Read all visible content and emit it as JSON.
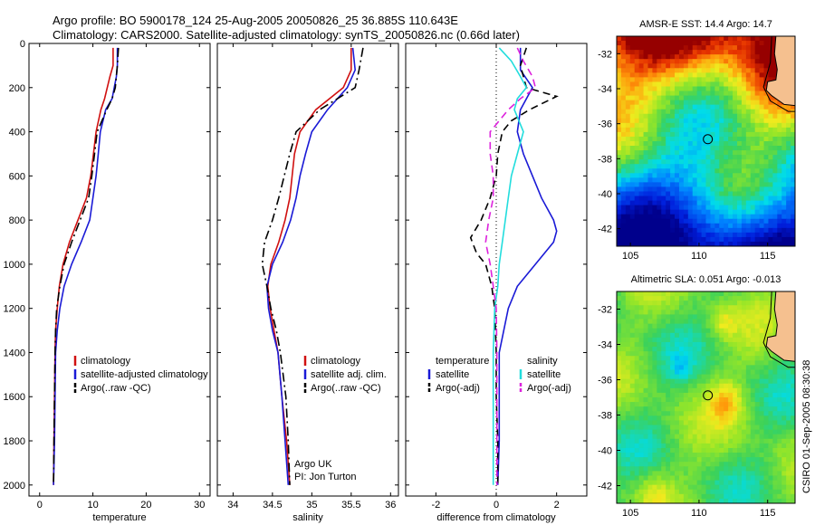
{
  "header": {
    "line1": "Argo profile: BO 5900178_124 25-Aug-2005 20050826_25 36.885S 110.643E",
    "line2": "Climatology: CARS2000. Satellite-adjusted climatology: synTS_20050826.nc (0.66d later)"
  },
  "footer": {
    "credit": "CSIRO 01-Sep-2005 08:30:38"
  },
  "colors": {
    "climatology": "#d01010",
    "satellite": "#1a1ad6",
    "argo": "#000000",
    "satellite_salinity_diff": "#22dddd",
    "argo_salinity_diff": "#dd22dd",
    "land": "#f5c08f"
  },
  "chart_data": [
    {
      "type": "line",
      "panel": "temperature",
      "xlabel": "temperature",
      "ylabel": "",
      "xlim": [
        -2,
        32
      ],
      "ylim": [
        2050,
        0
      ],
      "xticks": [
        0,
        10,
        20,
        30
      ],
      "yticks": [
        0,
        200,
        400,
        600,
        800,
        1000,
        1200,
        1400,
        1600,
        1800,
        2000
      ],
      "legend": {
        "position": "bottom-right",
        "entries": [
          "climatology",
          "satellite-adjusted climatology",
          "Argo(..raw -QC)"
        ]
      },
      "series": [
        {
          "name": "climatology",
          "style": "solid",
          "color": "#d01010",
          "depth": [
            20,
            100,
            150,
            250,
            300,
            400,
            500,
            600,
            700,
            800,
            900,
            1000,
            1100,
            1200,
            1300,
            1400,
            1600,
            1800,
            2000
          ],
          "values": [
            13.8,
            13.8,
            13.2,
            12.2,
            11.5,
            10.6,
            10.1,
            9.6,
            8.8,
            7.2,
            5.6,
            4.4,
            3.7,
            3.3,
            3.0,
            2.9,
            2.8,
            2.7,
            2.6
          ]
        },
        {
          "name": "satellite-adjusted climatology",
          "style": "solid",
          "color": "#1a1ad6",
          "depth": [
            20,
            100,
            150,
            250,
            300,
            400,
            500,
            600,
            700,
            800,
            900,
            1000,
            1100,
            1200,
            1300,
            1400,
            1600,
            1800,
            2000
          ],
          "values": [
            14.6,
            14.6,
            14.4,
            13.6,
            12.4,
            11.4,
            11.0,
            10.6,
            10.0,
            9.4,
            7.8,
            6.0,
            4.6,
            3.8,
            3.3,
            3.0,
            2.9,
            2.8,
            2.6
          ]
        },
        {
          "name": "Argo(..raw -QC)",
          "style": "dashdot",
          "color": "#000000",
          "depth": [
            20,
            100,
            200,
            250,
            300,
            400,
            500,
            600,
            700,
            800,
            900,
            1000,
            1100,
            1200,
            1300,
            1400,
            1600,
            1800,
            2000
          ],
          "values": [
            14.8,
            14.6,
            14.2,
            13.6,
            12.6,
            10.8,
            10.3,
            9.8,
            9.2,
            7.6,
            6.0,
            4.6,
            3.8,
            3.2,
            3.0,
            2.9,
            2.8,
            2.7,
            2.6
          ]
        }
      ]
    },
    {
      "type": "line",
      "panel": "salinity",
      "xlabel": "salinity",
      "ylabel": "",
      "xlim": [
        33.8,
        36.1
      ],
      "ylim": [
        2050,
        0
      ],
      "xticks": [
        34,
        34.5,
        35,
        35.5,
        36
      ],
      "legend": {
        "position": "bottom-right",
        "entries": [
          "climatology",
          "satellite adj. clim.",
          "Argo(..raw -QC)"
        ]
      },
      "annotation": [
        "Argo UK",
        "PI: Jon Turton"
      ],
      "series": [
        {
          "name": "climatology",
          "style": "solid",
          "color": "#d01010",
          "depth": [
            20,
            120,
            200,
            300,
            400,
            500,
            600,
            700,
            800,
            900,
            1000,
            1100,
            1200,
            1300,
            1400,
            1600,
            1800,
            2000
          ],
          "values": [
            35.5,
            35.5,
            35.4,
            35.05,
            34.85,
            34.78,
            34.75,
            34.72,
            34.66,
            34.58,
            34.48,
            34.44,
            34.47,
            34.52,
            34.57,
            34.62,
            34.68,
            34.72
          ]
        },
        {
          "name": "satellite adj. clim.",
          "style": "solid",
          "color": "#1a1ad6",
          "depth": [
            20,
            120,
            200,
            300,
            400,
            500,
            600,
            700,
            800,
            900,
            1000,
            1100,
            1200,
            1300,
            1400,
            1600,
            1800,
            2000
          ],
          "values": [
            35.52,
            35.55,
            35.45,
            35.2,
            35.0,
            34.92,
            34.85,
            34.8,
            34.73,
            34.63,
            34.5,
            34.43,
            34.45,
            34.5,
            34.57,
            34.62,
            34.66,
            34.7
          ]
        },
        {
          "name": "Argo(..raw -QC)",
          "style": "dashdot",
          "color": "#000000",
          "depth": [
            20,
            120,
            200,
            300,
            400,
            500,
            600,
            700,
            800,
            900,
            1000,
            1100,
            1200,
            1300,
            1400,
            1600,
            1800,
            2000
          ],
          "values": [
            35.65,
            35.6,
            35.55,
            35.1,
            34.8,
            34.72,
            34.65,
            34.58,
            34.5,
            34.4,
            34.37,
            34.43,
            34.48,
            34.55,
            34.6,
            34.67,
            34.7,
            34.72
          ]
        }
      ]
    },
    {
      "type": "line",
      "panel": "difference",
      "xlabel": "difference from climatology",
      "ylabel": "",
      "xlim": [
        -3,
        3
      ],
      "ylim": [
        2050,
        0
      ],
      "xticks": [
        -2,
        0,
        2
      ],
      "legend": {
        "position": "bottom-center",
        "temperature_header": "temperature",
        "salinity_header": "salinity",
        "entries": [
          "satellite",
          "Argo(-adj)",
          "satellite",
          "Argo(-adj)"
        ]
      },
      "series": [
        {
          "name": "temperature satellite",
          "style": "solid",
          "color": "#1a1ad6",
          "depth": [
            20,
            120,
            200,
            300,
            400,
            500,
            600,
            700,
            800,
            850,
            900,
            1000,
            1100,
            1200,
            1400,
            1600,
            1800,
            2000
          ],
          "values": [
            0.8,
            0.8,
            1.2,
            0.8,
            0.7,
            0.9,
            1.2,
            1.5,
            1.9,
            2.0,
            1.9,
            1.3,
            0.7,
            0.4,
            0.1,
            0.1,
            0.1,
            0.05
          ]
        },
        {
          "name": "temperature Argo(-adj)",
          "style": "dashed",
          "color": "#000000",
          "depth": [
            20,
            100,
            200,
            240,
            300,
            350,
            400,
            500,
            600,
            700,
            800,
            880,
            950,
            1000,
            1100,
            1200,
            1400,
            1600,
            1800,
            2000
          ],
          "values": [
            1.0,
            0.8,
            1.0,
            2.0,
            1.1,
            0.5,
            0.2,
            0.05,
            0.0,
            -0.2,
            -0.5,
            -0.85,
            -0.65,
            -0.35,
            -0.15,
            -0.05,
            0.0,
            0.0,
            0.05,
            0.05
          ]
        },
        {
          "name": "salinity satellite",
          "style": "solid",
          "color": "#22dddd",
          "depth": [
            20,
            80,
            150,
            200,
            250,
            300,
            400,
            500,
            600,
            700,
            800,
            900,
            1000,
            1100,
            1200,
            1400,
            1600,
            1800,
            2000
          ],
          "values": [
            0.1,
            0.5,
            0.8,
            1.0,
            0.7,
            0.6,
            0.9,
            0.7,
            0.5,
            0.4,
            0.3,
            0.2,
            0.1,
            0.05,
            -0.05,
            -0.1,
            -0.1,
            -0.1,
            -0.1
          ]
        },
        {
          "name": "salinity Argo(-adj)",
          "style": "dashed",
          "color": "#dd22dd",
          "depth": [
            20,
            80,
            150,
            200,
            250,
            300,
            400,
            500,
            600,
            700,
            800,
            900,
            1000,
            1100,
            1200,
            1400,
            1600,
            1800,
            2000
          ],
          "values": [
            0.7,
            0.9,
            1.2,
            1.3,
            0.8,
            0.4,
            -0.2,
            -0.2,
            -0.1,
            -0.1,
            -0.25,
            -0.35,
            -0.2,
            -0.1,
            0.0,
            0.02,
            0.02,
            0.02,
            0.02
          ]
        }
      ]
    },
    {
      "type": "heatmap",
      "panel": "sst_map",
      "title": "AMSR-E SST: 14.4 Argo: 14.7",
      "xlim": [
        104,
        117
      ],
      "ylim": [
        -43,
        -31
      ],
      "xticks": [
        105,
        110,
        115
      ],
      "yticks": [
        -32,
        -34,
        -36,
        -38,
        -40,
        -42
      ],
      "marker": {
        "lon": 110.643,
        "lat": -36.885
      }
    },
    {
      "type": "heatmap",
      "panel": "sla_map",
      "title": "Altimetric SLA: 0.051 Argo: -0.013",
      "xlim": [
        104,
        117
      ],
      "ylim": [
        -43,
        -31
      ],
      "xticks": [
        105,
        110,
        115
      ],
      "yticks": [
        -32,
        -34,
        -36,
        -38,
        -40,
        -42
      ],
      "marker": {
        "lon": 110.643,
        "lat": -36.885
      }
    }
  ]
}
